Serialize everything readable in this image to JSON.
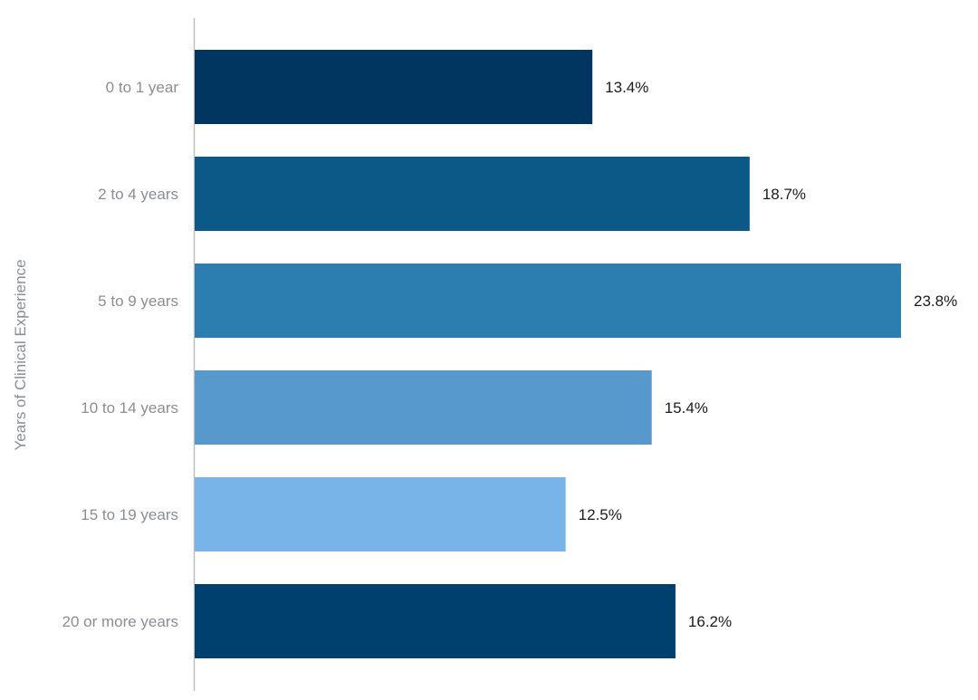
{
  "chart_data": {
    "type": "bar",
    "orientation": "horizontal",
    "ylabel": "Years of Clinical Experience",
    "xlabel": "",
    "categories": [
      "0 to 1 year",
      "2 to 4 years",
      "5 to 9 years",
      "10 to 14 years",
      "15 to 19 years",
      "20 or more years"
    ],
    "values": [
      13.4,
      18.7,
      23.8,
      15.4,
      12.5,
      16.2
    ],
    "data_labels": [
      "13.4%",
      "18.7%",
      "23.8%",
      "15.4%",
      "12.5%",
      "16.2%"
    ],
    "colors": [
      "#00365f",
      "#0c5886",
      "#2c7db0",
      "#5899cd",
      "#78b4e8",
      "#00406f"
    ],
    "xlim": [
      0,
      23.8
    ],
    "grid": false,
    "legend": "none"
  }
}
